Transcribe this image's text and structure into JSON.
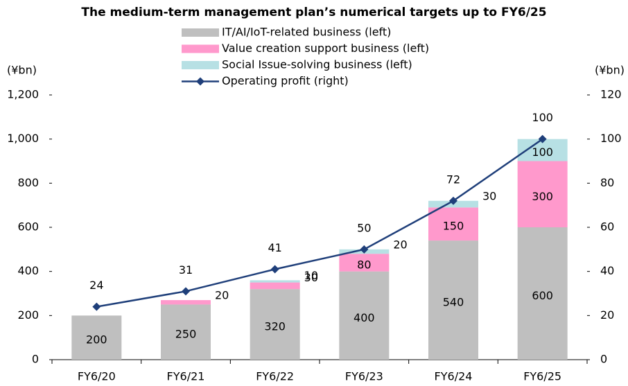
{
  "chart_data": {
    "type": "bar",
    "stacked": true,
    "title": "The medium-term management plan’s numerical targets up to FY6/25",
    "y_label": "(¥bn)",
    "y2_label": "(¥bn)",
    "categories": [
      "FY6/20",
      "FY6/21",
      "FY6/22",
      "FY6/23",
      "FY6/24",
      "FY6/25"
    ],
    "series": [
      {
        "name": "IT/AI/IoT-related business (left)",
        "type": "bar",
        "color": "#bfbfbf",
        "values": [
          200,
          250,
          320,
          400,
          540,
          600
        ]
      },
      {
        "name": "Value creation support business (left)",
        "type": "bar",
        "color": "#ff99cc",
        "values": [
          null,
          20,
          30,
          80,
          150,
          300
        ]
      },
      {
        "name": "Social Issue-solving business (left)",
        "type": "bar",
        "color": "#b7e0e4",
        "values": [
          null,
          null,
          10,
          20,
          30,
          100
        ]
      },
      {
        "name": "Operating profit (right)",
        "type": "line",
        "axis": "y2",
        "color": "#1f3f7a",
        "values": [
          24,
          31,
          41,
          50,
          72,
          100
        ]
      }
    ],
    "ylim": [
      0,
      1200
    ],
    "yticks": [
      0,
      200,
      400,
      600,
      800,
      {
        "value": 1000,
        "label": "1,000"
      },
      {
        "value": 1200,
        "label": "1,200"
      }
    ],
    "y2lim": [
      0,
      120
    ],
    "y2ticks": [
      0,
      20,
      40,
      60,
      80,
      100,
      120
    ],
    "legend": "top"
  }
}
